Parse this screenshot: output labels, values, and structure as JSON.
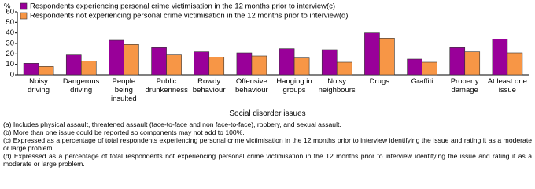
{
  "chart_data": {
    "type": "bar",
    "y_unit": "%",
    "x_label": "Social disorder issues",
    "categories": [
      "Noisy driving",
      "Dangerous driving",
      "People being insulted",
      "Public drunkenness",
      "Rowdy behaviour",
      "Offensive behaviour",
      "Hanging in groups",
      "Noisy neighbours",
      "Drugs",
      "Graffiti",
      "Property damage",
      "At least one issue"
    ],
    "series": [
      {
        "name": "Respondents experiencing personal crime victimisation in the 12 months prior to interview(c)",
        "color": "#990099",
        "values": [
          11,
          19,
          33,
          26,
          22,
          21,
          25,
          24,
          40,
          15,
          26,
          34
        ]
      },
      {
        "name": "Respondents not experiencing personal crime victimisation in the 12 months prior to interview(d)",
        "color": "#f79646",
        "values": [
          8,
          13,
          29,
          19,
          17,
          18,
          16,
          12,
          35,
          12,
          22,
          21
        ]
      }
    ],
    "ylim": [
      0,
      60
    ],
    "yticks": [
      0,
      10,
      20,
      30,
      40,
      50,
      60
    ],
    "legend": "top-left",
    "notes": [
      "(a) Includes physical assault, threatened assault (face-to-face and non face-to-face), robbery, and sexual assault.",
      "(b) More than one issue could be reported so components may not add to 100%.",
      "(c) Expressed as a percentage of total respondents experiencing personal crime victimisation in the 12 months prior to interview identifying the issue and rating it as a moderate or large problem.",
      "(d) Expressed as a percentage of total respondents not experiencing personal crime victimisation in the 12 months prior to interview identifying the issue and rating it as a moderate or large problem."
    ]
  }
}
